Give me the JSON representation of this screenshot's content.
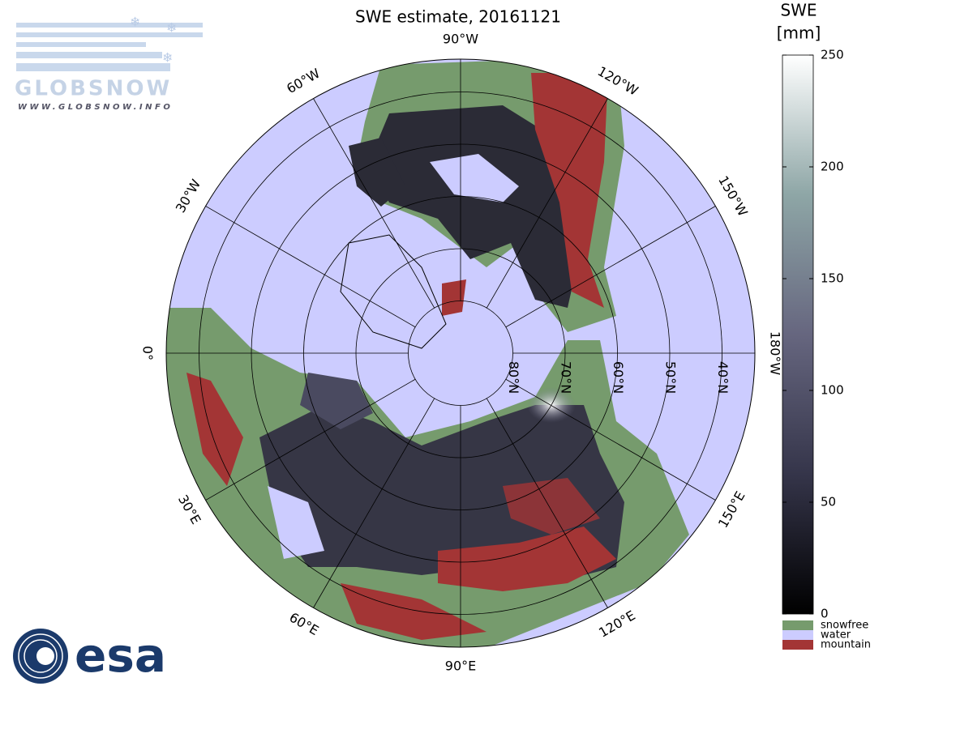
{
  "title": "SWE estimate, 20161121",
  "logos": {
    "globsnow": "GLOBSNOW",
    "globsnow_url": "WWW.GLOBSNOW.INFO",
    "esa": "esa"
  },
  "colorbar": {
    "label": [
      "SWE",
      "[mm]"
    ],
    "lim": [
      0,
      250
    ],
    "ticks": [
      0,
      50,
      100,
      150,
      200,
      250
    ],
    "colormap": [
      "#000000",
      "#35354a",
      "#66667f",
      "#8ea6a6",
      "#ffffff"
    ]
  },
  "legend": [
    {
      "name": "snowfree",
      "color": "#769b6d"
    },
    {
      "name": "water",
      "color": "#ccccff"
    },
    {
      "name": "mountain",
      "color": "#a33535"
    }
  ],
  "longitude_labels": [
    {
      "lon": -90,
      "label": "90°W"
    },
    {
      "lon": -120,
      "label": "120°W"
    },
    {
      "lon": -150,
      "label": "150°W"
    },
    {
      "lon": -180,
      "label": "180°W"
    },
    {
      "lon": 150,
      "label": "150°E"
    },
    {
      "lon": 120,
      "label": "120°E"
    },
    {
      "lon": 90,
      "label": "90°E"
    },
    {
      "lon": 60,
      "label": "60°E"
    },
    {
      "lon": 30,
      "label": "30°E"
    },
    {
      "lon": 0,
      "label": "0°"
    },
    {
      "lon": -30,
      "label": "30°W"
    },
    {
      "lon": -60,
      "label": "60°W"
    }
  ],
  "latitude_labels": [
    {
      "lat": 80,
      "label": "80°N"
    },
    {
      "lat": 70,
      "label": "70°N"
    },
    {
      "lat": 60,
      "label": "60°N"
    },
    {
      "lat": 50,
      "label": "50°N"
    },
    {
      "lat": 40,
      "label": "40°N"
    }
  ]
}
